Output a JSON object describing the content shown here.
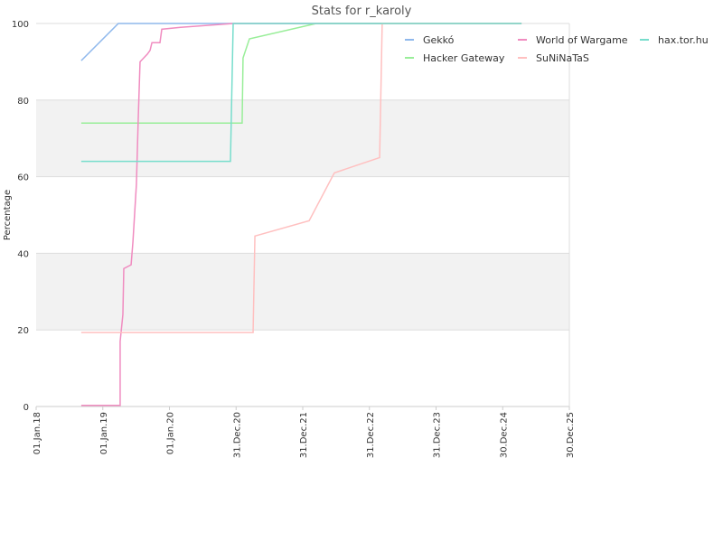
{
  "chart_data": {
    "type": "line",
    "title": "Stats for r_karoly",
    "y_label": "Percentage",
    "xlim": [
      "2018-01-01",
      "2025-12-30"
    ],
    "xticks": [
      {
        "value": "2018-01-01",
        "label": "01.Jan.18"
      },
      {
        "value": "2019-01-01",
        "label": "01.Jan.19"
      },
      {
        "value": "2020-01-01",
        "label": "01.Jan.20"
      },
      {
        "value": "2020-12-31",
        "label": "31.Dec.20"
      },
      {
        "value": "2021-12-31",
        "label": "31.Dec.21"
      },
      {
        "value": "2022-12-31",
        "label": "31.Dec.22"
      },
      {
        "value": "2023-12-31",
        "label": "31.Dec.23"
      },
      {
        "value": "2024-12-30",
        "label": "30.Dec.24"
      },
      {
        "value": "2025-12-30",
        "label": "30.Dec.25"
      }
    ],
    "ylim": [
      0,
      100
    ],
    "yticks": [
      0,
      20,
      40,
      60,
      80,
      100
    ],
    "grid": true,
    "legend": "top-right",
    "series": [
      {
        "name": "Gekkó",
        "color": "#8fb8ec",
        "x": [
          "2018-09-05",
          "2019-03-27",
          "2025-04-12"
        ],
        "values": [
          90.3,
          100,
          100
        ]
      },
      {
        "name": "Hacker Gateway",
        "color": "#99ee99",
        "x": [
          "2018-09-05",
          "2021-02-02",
          "2021-02-07",
          "2021-03-14",
          "2022-03-15",
          "2025-04-12"
        ],
        "values": [
          74,
          74,
          91,
          96,
          100,
          100
        ]
      },
      {
        "name": "World of Wargame",
        "color": "#f08cc0",
        "x": [
          "2018-09-05",
          "2019-04-06",
          "2019-04-06",
          "2019-04-21",
          "2019-04-26",
          "2019-06-05",
          "2019-06-15",
          "2019-07-04",
          "2019-07-14",
          "2019-07-24",
          "2019-09-02",
          "2019-09-17",
          "2019-09-27",
          "2019-11-10",
          "2019-11-20",
          "2020-03-02",
          "2020-12-15",
          "2025-04-12"
        ],
        "values": [
          0.3,
          0.3,
          17,
          24,
          36,
          37,
          43,
          58,
          75,
          90,
          92,
          93,
          95,
          95,
          98.5,
          99,
          100,
          100
        ]
      },
      {
        "name": "SuNiNaTaS",
        "color": "#ffc0c0",
        "x": [
          "2018-09-05",
          "2021-04-03",
          "2021-04-13",
          "2022-02-04",
          "2022-06-22",
          "2023-02-25",
          "2023-03-11",
          "2025-04-12"
        ],
        "values": [
          19.3,
          19.3,
          44.5,
          48.5,
          61,
          65,
          100,
          100
        ]
      },
      {
        "name": "hax.tor.hu",
        "color": "#77ddcc",
        "x": [
          "2018-09-05",
          "2020-11-30",
          "2020-12-15",
          "2025-04-12"
        ],
        "values": [
          64,
          64,
          100,
          100
        ]
      }
    ]
  }
}
